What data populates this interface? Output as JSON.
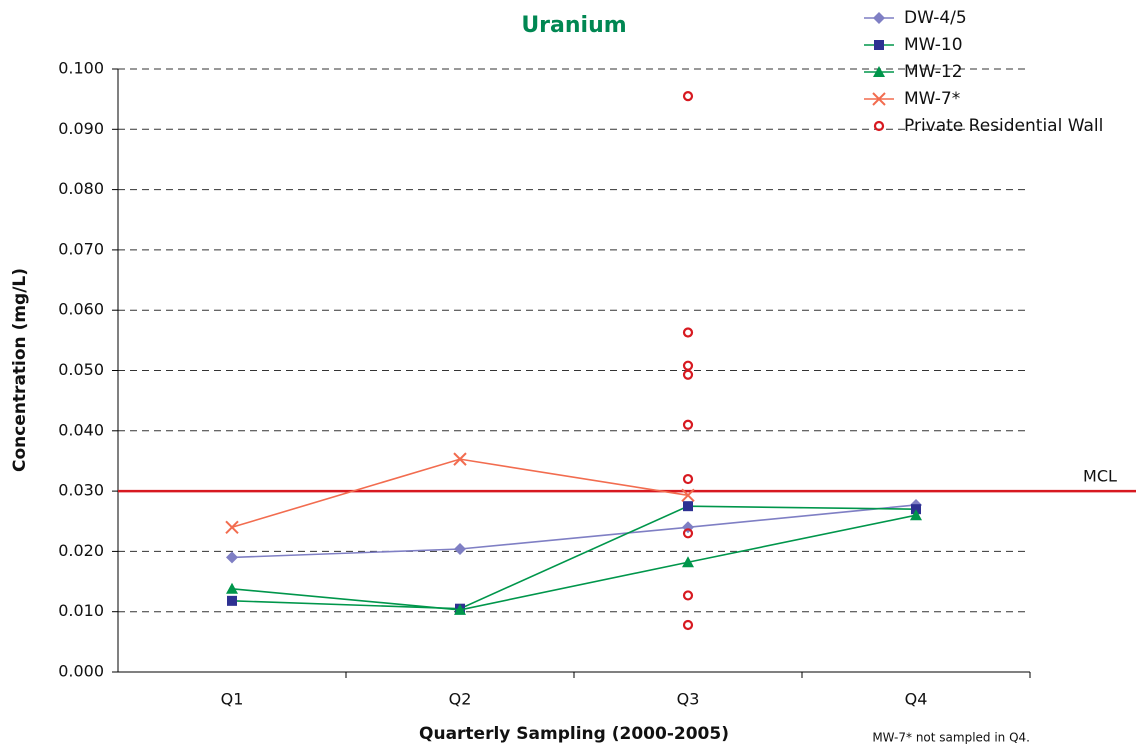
{
  "chart_data": {
    "type": "line",
    "title": "Uranium",
    "title_color": "#008752",
    "y_label": "Concentration (mg/L)",
    "x_label": "Quarterly Sampling (2000-2005)",
    "note": "MW-7* not sampled in Q4.",
    "categories": [
      "Q1",
      "Q2",
      "Q3",
      "Q4"
    ],
    "ylim": [
      0,
      0.1
    ],
    "yticks": [
      {
        "value": 0,
        "label": "0.000"
      },
      {
        "value": 0.01,
        "label": "0.010"
      },
      {
        "value": 0.02,
        "label": "0.020"
      },
      {
        "value": 0.03,
        "label": "0.030"
      },
      {
        "value": 0.04,
        "label": "0.040"
      },
      {
        "value": 0.05,
        "label": "0.050"
      },
      {
        "value": 0.06,
        "label": "0.060"
      },
      {
        "value": 0.07,
        "label": "0.070"
      },
      {
        "value": 0.08,
        "label": "0.080"
      },
      {
        "value": 0.09,
        "label": "0.090"
      },
      {
        "value": 0.1,
        "label": "0.100"
      }
    ],
    "grid": true,
    "legend": "top-right",
    "reference_line": {
      "value": 0.03,
      "label": "MCL",
      "color": "#d71920"
    },
    "series": [
      {
        "name": "DW-4/5",
        "color": "#7f7fc4",
        "marker": "diamond",
        "values": [
          0.019,
          0.0204,
          0.024,
          0.0277
        ]
      },
      {
        "name": "MW-10",
        "color": "#2e3192",
        "line_color": "#00964b",
        "marker": "square",
        "values": [
          0.0118,
          0.0105,
          0.0275,
          0.027
        ]
      },
      {
        "name": "MW-12",
        "color": "#00964b",
        "marker": "triangle",
        "values": [
          0.0138,
          0.0103,
          0.0182,
          0.026
        ]
      },
      {
        "name": "MW-7*",
        "color": "#f26c4f",
        "marker": "x",
        "values": [
          0.024,
          0.0353,
          0.0293,
          null
        ]
      },
      {
        "name": "Private Residential Wall",
        "color": "#d71920",
        "marker": "circle",
        "scatter": true,
        "x": [
          "Q3",
          "Q3",
          "Q3",
          "Q3",
          "Q3",
          "Q3",
          "Q3",
          "Q3",
          "Q3"
        ],
        "values": [
          0.0955,
          0.0563,
          0.0508,
          0.0493,
          0.041,
          0.032,
          0.023,
          0.0127,
          0.0078
        ]
      }
    ]
  }
}
